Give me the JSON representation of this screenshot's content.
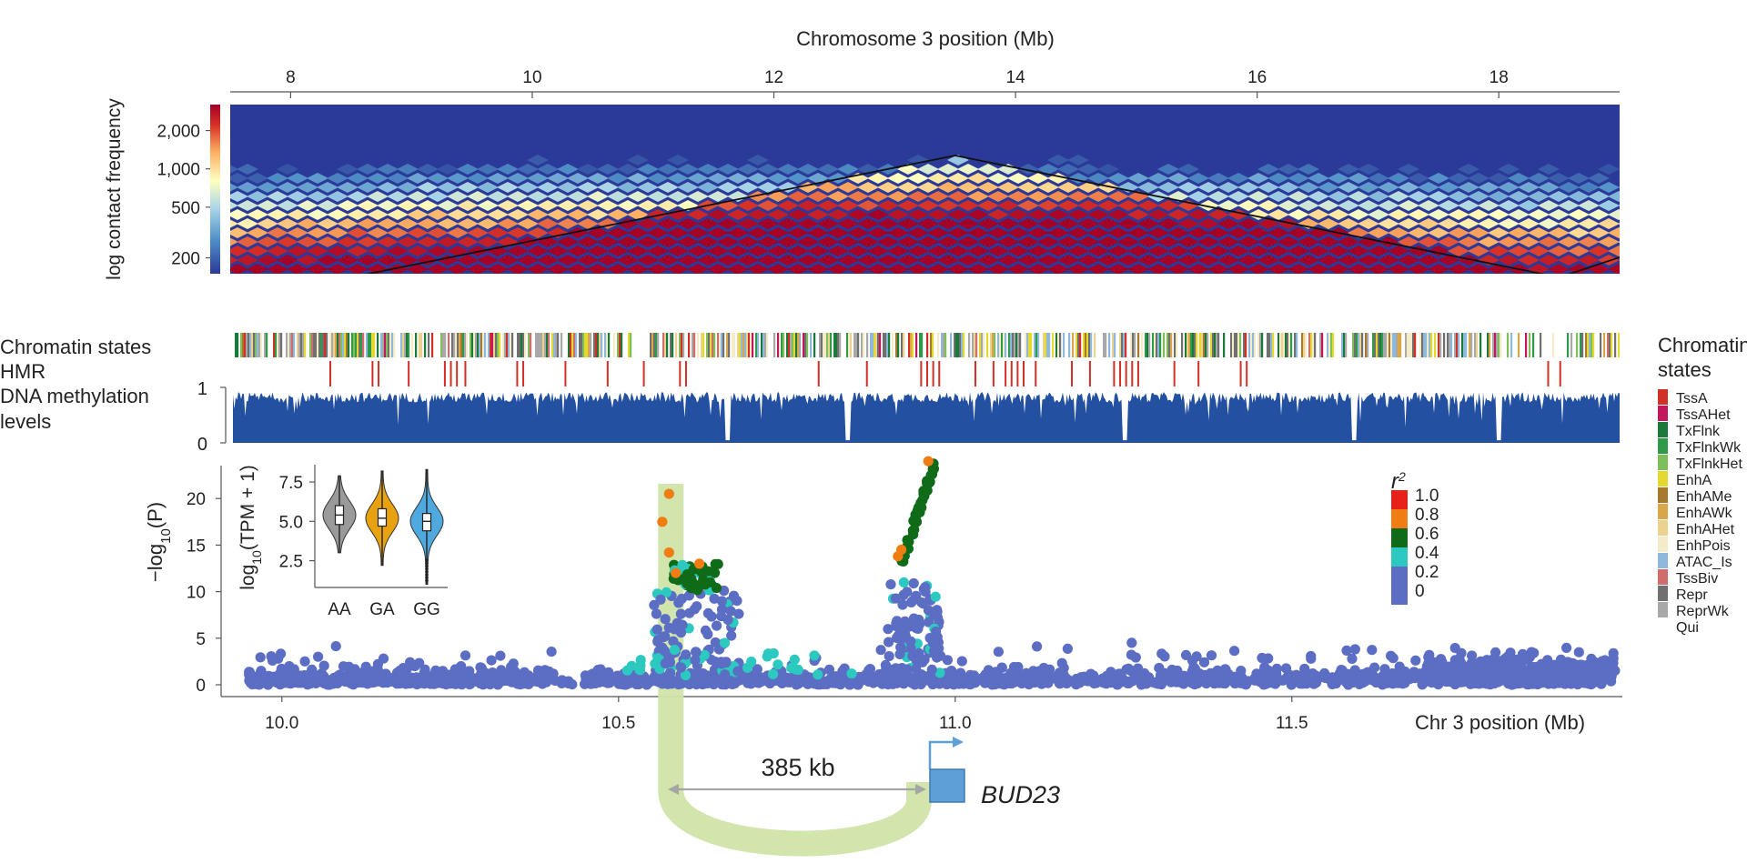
{
  "chart_data": [
    {
      "type": "heatmap",
      "name": "hic",
      "xlabel": "Chromosome 3 position (Mb)",
      "x_ticks": [
        8,
        10,
        12,
        14,
        16,
        18
      ],
      "xlim": [
        7.5,
        19.0
      ],
      "colorbar_label": "log contact frequency",
      "colorbar_ticks": [
        "2,000",
        "1,000",
        "500",
        "200"
      ],
      "colorbar_tick_values": [
        2000,
        1000,
        500,
        200
      ],
      "colorscale": [
        "#2b3a98",
        "#4f8fc7",
        "#a7d3e8",
        "#ffffbf",
        "#fdae61",
        "#d73027",
        "#a50026"
      ],
      "tad_triangle": {
        "apex_mb": 13.5,
        "left_mb": 8.5,
        "right_mb": 18.5
      }
    },
    {
      "type": "track",
      "name": "chromatin-states",
      "label": "Chromatin states",
      "legend_title": "Chromatin states",
      "legend": [
        {
          "name": "TssA",
          "color": "#d22f27"
        },
        {
          "name": "TssAHet",
          "color": "#c2185b"
        },
        {
          "name": "TxFlnk",
          "color": "#1b7a3a"
        },
        {
          "name": "TxFlnkWk",
          "color": "#2e9a4a"
        },
        {
          "name": "TxFlnkHet",
          "color": "#7fbf5a"
        },
        {
          "name": "EnhA",
          "color": "#e3d930"
        },
        {
          "name": "EnhAMe",
          "color": "#a8782c"
        },
        {
          "name": "EnhAWk",
          "color": "#d9a64a"
        },
        {
          "name": "EnhAHet",
          "color": "#ecd28f"
        },
        {
          "name": "EnhPois",
          "color": "#f4ecc8"
        },
        {
          "name": "ATAC_Is",
          "color": "#8fb9dc"
        },
        {
          "name": "TssBiv",
          "color": "#cf6d6d"
        },
        {
          "name": "Repr",
          "color": "#707070"
        },
        {
          "name": "ReprWk",
          "color": "#a8a8a8"
        },
        {
          "name": "Qui",
          "color": "#ffffff"
        }
      ]
    },
    {
      "type": "track",
      "name": "hmr",
      "label": "HMR",
      "color": "#d22f27",
      "positions_mb": [
        8.3,
        8.65,
        8.7,
        8.95,
        9.25,
        9.3,
        9.35,
        9.42,
        9.85,
        9.9,
        10.25,
        10.6,
        10.9,
        11.2,
        11.25,
        12.35,
        12.75,
        13.2,
        13.25,
        13.3,
        13.35,
        13.65,
        13.8,
        13.9,
        13.95,
        14.0,
        14.05,
        14.15,
        14.45,
        14.6,
        14.8,
        14.85,
        14.9,
        14.95,
        15.0,
        15.3,
        15.5,
        15.85,
        15.9,
        18.4,
        18.5
      ]
    },
    {
      "type": "area",
      "name": "dna-methylation",
      "label_line1": "DNA methylation",
      "label_line2": "levels",
      "ylim": [
        0,
        1
      ],
      "y_ticks": [
        0,
        1
      ],
      "color": "#2350a0",
      "dips_mb": [
        11.6,
        12.6,
        14.9,
        16.8,
        18.0
      ]
    },
    {
      "type": "scatter",
      "name": "manhattan",
      "ylabel_prefix": "−log",
      "ylabel_sub": "10",
      "ylabel_suffix": "(P)",
      "xlabel": "Chr 3 position (Mb)",
      "x_ticks": [
        10.0,
        10.5,
        11.0,
        11.5
      ],
      "x_tick_labels": [
        "10.0",
        "10.5",
        "11.0",
        "11.5"
      ],
      "xlim": [
        9.93,
        11.98
      ],
      "ylim": [
        0,
        25
      ],
      "y_ticks": [
        0,
        5,
        10,
        15,
        20
      ],
      "lead_snp": {
        "x": 10.575,
        "y": 20.5
      },
      "peaks": [
        {
          "x_range": [
            10.57,
            10.66
          ],
          "max_y": 13
        },
        {
          "x_range": [
            10.91,
            10.97
          ],
          "max_y": 24
        }
      ],
      "legend_title": "r",
      "legend_title_sup": "2",
      "legend": [
        {
          "label": "1.0",
          "color": "#e8221b"
        },
        {
          "label": "0.8",
          "color": "#f07d12"
        },
        {
          "label": "0.6",
          "color": "#0f6b18"
        },
        {
          "label": "0.4",
          "color": "#2cc9c0"
        },
        {
          "label": "0.2",
          "color": "#5c6dc4"
        },
        {
          "label": "0",
          "color": "#5c6dc4"
        }
      ],
      "inset": {
        "type": "violin",
        "ylabel_prefix": "log",
        "ylabel_sub": "10",
        "ylabel_suffix": "(TPM + 1)",
        "y_ticks": [
          2.5,
          5.0,
          7.5
        ],
        "y_tick_labels": [
          "2.5",
          "5.0",
          "7.5"
        ],
        "ylim": [
          0.8,
          8.6
        ],
        "groups": [
          {
            "name": "AA",
            "color": "#9a9a9a",
            "median": 5.4,
            "q1": 4.8,
            "q3": 6.0,
            "min": 3.0,
            "max": 7.9
          },
          {
            "name": "GA",
            "color": "#e8a20f",
            "median": 5.2,
            "q1": 4.7,
            "q3": 5.8,
            "min": 2.2,
            "max": 8.2
          },
          {
            "name": "GG",
            "color": "#4fa9de",
            "median": 5.0,
            "q1": 4.4,
            "q3": 5.5,
            "min": 1.0,
            "max": 8.3
          }
        ]
      }
    }
  ],
  "annotation": {
    "distance_label": "385 kb",
    "gene_name": "BUD23",
    "loop_color": "#cfe4a8",
    "gene_color": "#5f9fd8"
  }
}
